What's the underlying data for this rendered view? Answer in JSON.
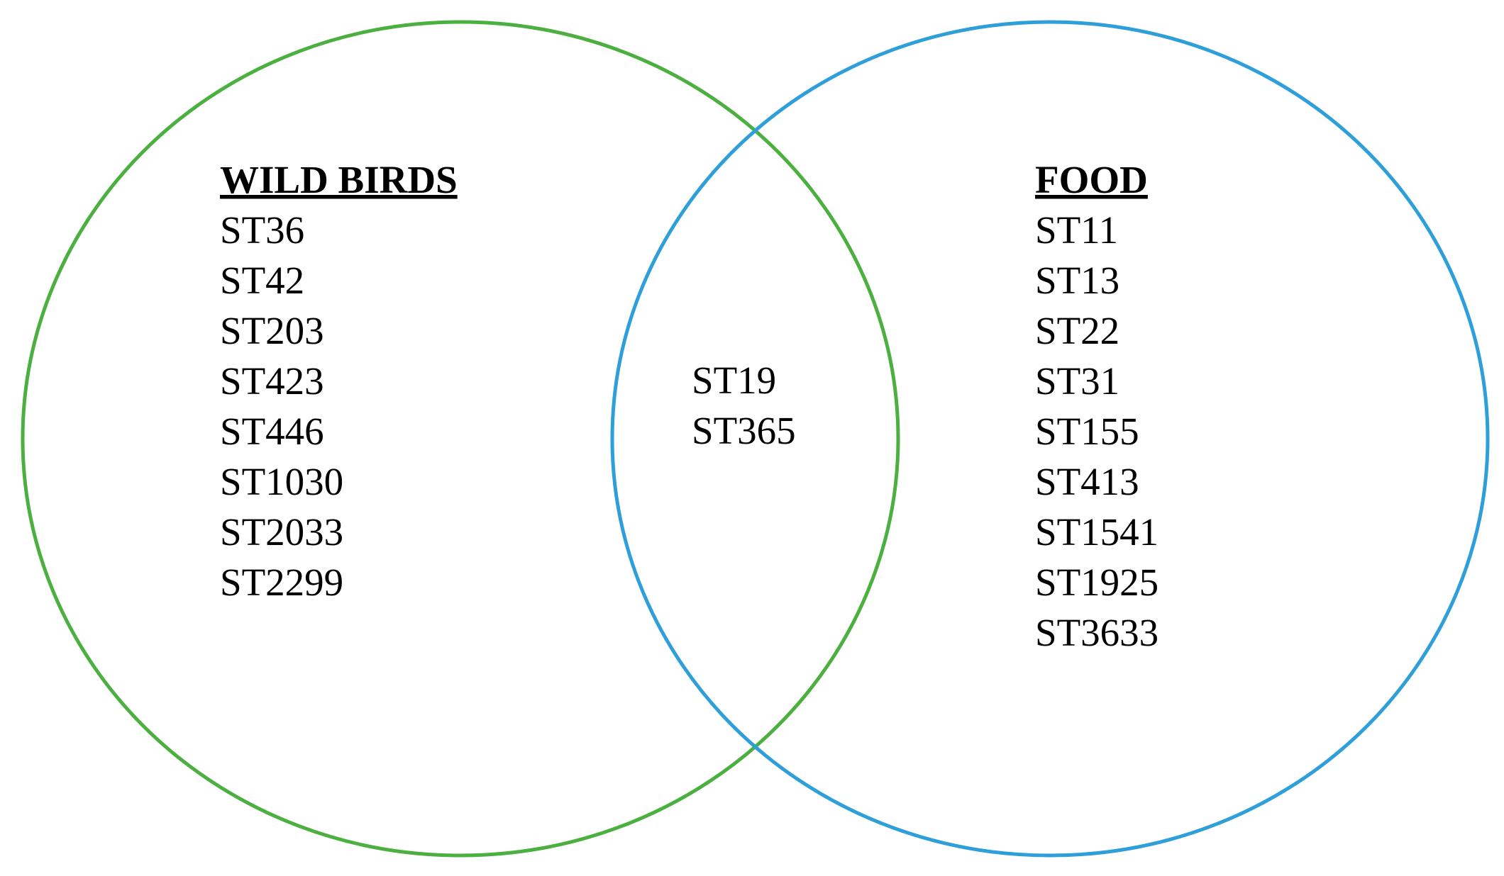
{
  "sets": [
    {
      "label": "WILD BIRDS",
      "items": [
        "ST36",
        "ST42",
        "ST203",
        "ST423",
        "ST446",
        "ST1030",
        "ST2033",
        "ST2299"
      ]
    },
    {
      "label": "FOOD",
      "items": [
        "ST11",
        "ST13",
        "ST22",
        "ST31",
        "ST155",
        "ST413",
        "ST1541",
        "ST1925",
        "ST3633"
      ]
    }
  ],
  "intersection": [
    "ST19",
    "ST365"
  ]
}
